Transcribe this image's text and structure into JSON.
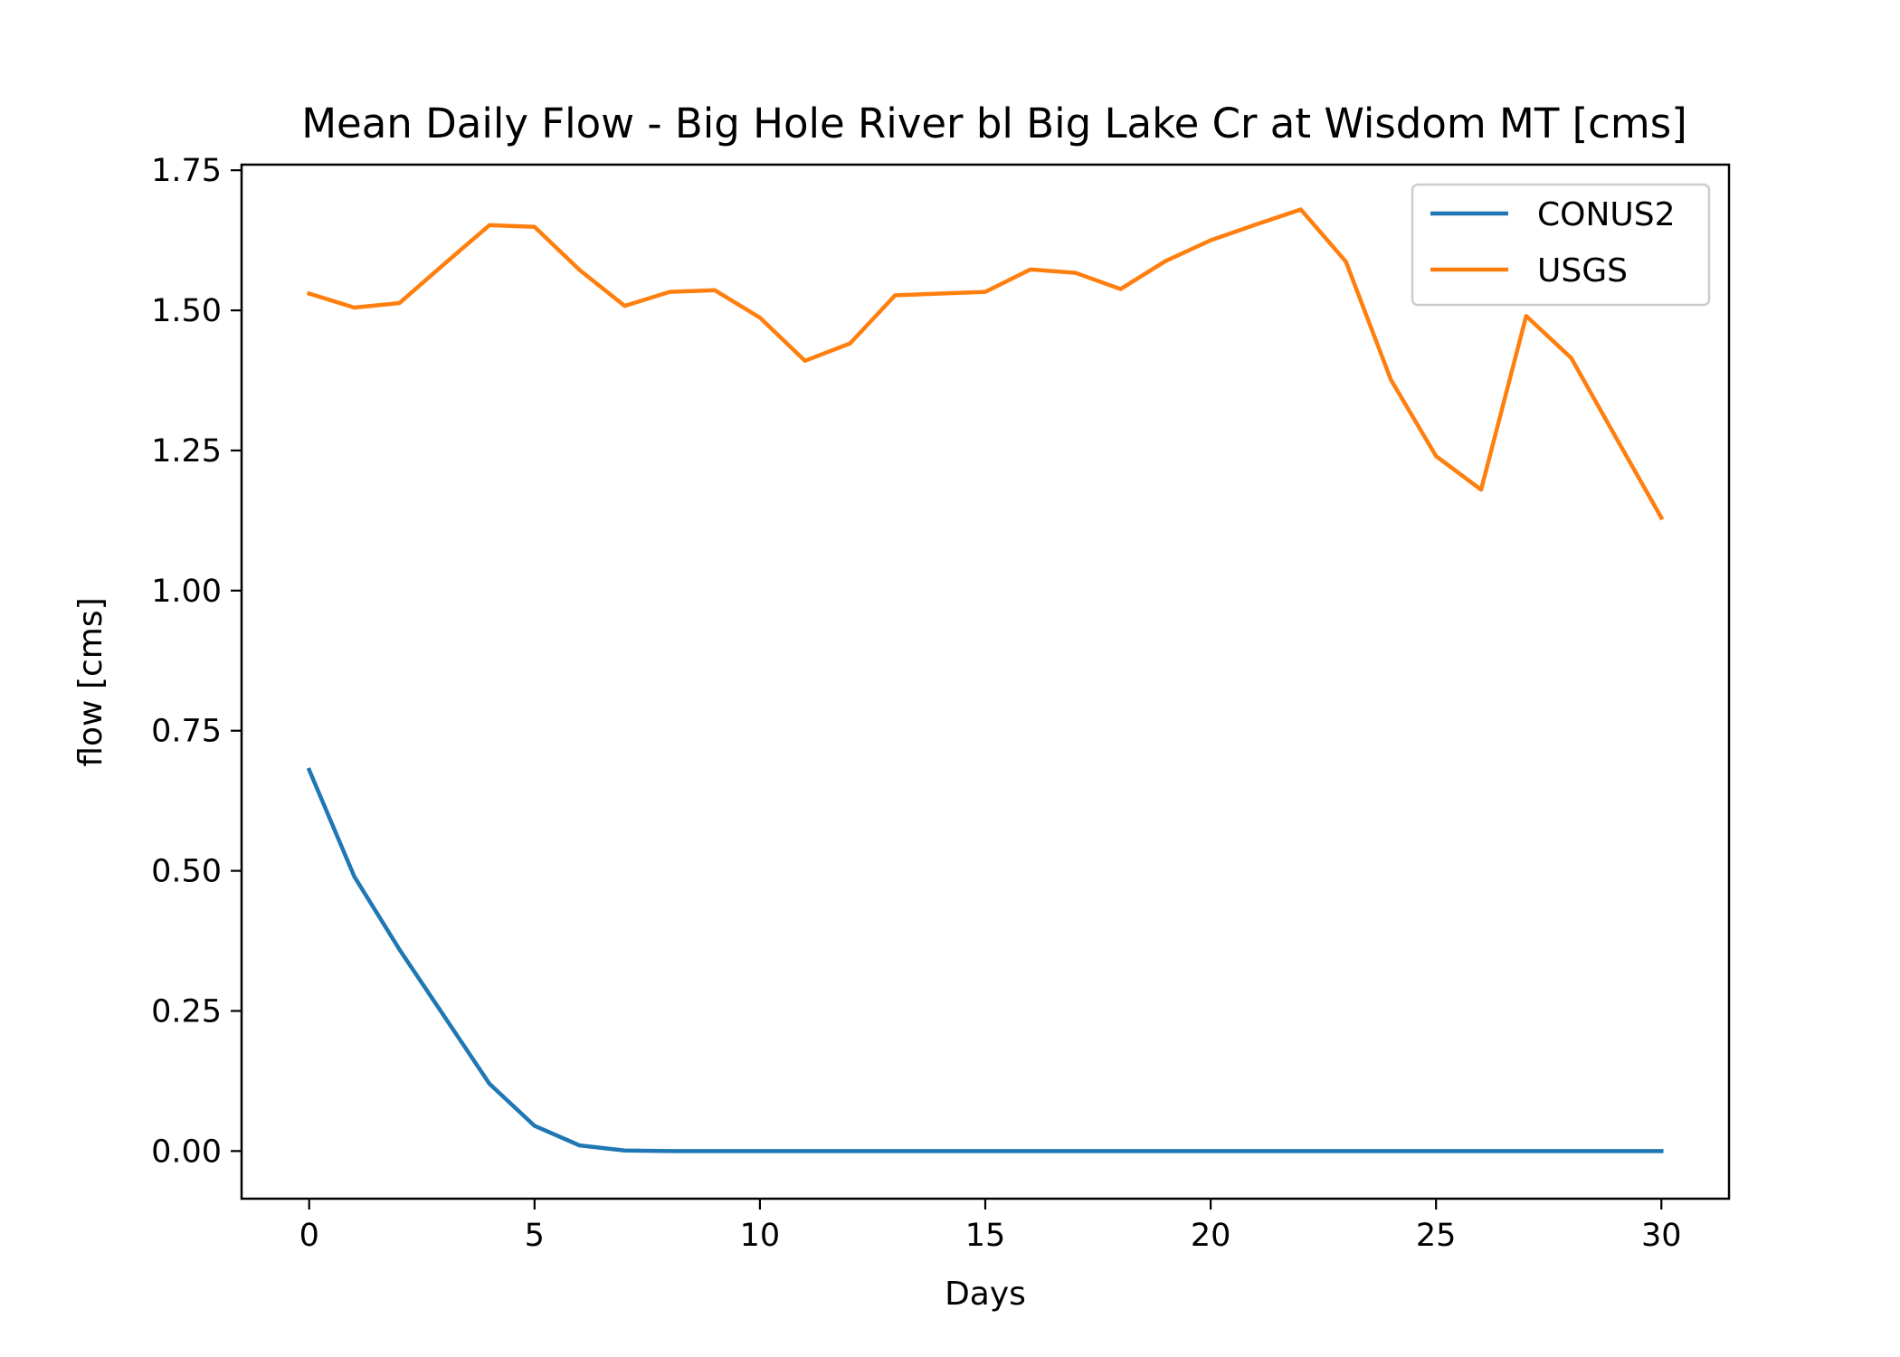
{
  "chart_data": {
    "type": "line",
    "title": "Mean Daily Flow - Big Hole River bl Big Lake Cr at Wisdom MT [cms]",
    "xlabel": "Days",
    "ylabel": "flow [cms]",
    "xlim": [
      -1.5,
      31.5
    ],
    "ylim": [
      -0.085,
      1.76
    ],
    "xticks": [
      0,
      5,
      10,
      15,
      20,
      25,
      30
    ],
    "xtick_labels": [
      "0",
      "5",
      "10",
      "15",
      "20",
      "25",
      "30"
    ],
    "yticks": [
      0.0,
      0.25,
      0.5,
      0.75,
      1.0,
      1.25,
      1.5,
      1.75
    ],
    "ytick_labels": [
      "0.00",
      "0.25",
      "0.50",
      "0.75",
      "1.00",
      "1.25",
      "1.50",
      "1.75"
    ],
    "grid": false,
    "legend_position": "top-right",
    "x": [
      0,
      1,
      2,
      3,
      4,
      5,
      6,
      7,
      8,
      9,
      10,
      11,
      12,
      13,
      14,
      15,
      16,
      17,
      18,
      19,
      20,
      21,
      22,
      23,
      24,
      25,
      26,
      27,
      28,
      29,
      30
    ],
    "series": [
      {
        "name": "CONUS2",
        "color": "#1f77b4",
        "values": [
          0.68,
          0.49,
          0.36,
          0.24,
          0.12,
          0.045,
          0.01,
          0.001,
          0.0,
          0.0,
          0.0,
          0.0,
          0.0,
          0.0,
          0.0,
          0.0,
          0.0,
          0.0,
          0.0,
          0.0,
          0.0,
          0.0,
          0.0,
          0.0,
          0.0,
          0.0,
          0.0,
          0.0,
          0.0,
          0.0,
          0.0
        ]
      },
      {
        "name": "USGS",
        "color": "#ff7f0e",
        "values": [
          1.53,
          1.505,
          1.513,
          1.583,
          1.652,
          1.649,
          1.572,
          1.508,
          1.533,
          1.536,
          1.487,
          1.41,
          1.441,
          1.527,
          1.53,
          1.533,
          1.573,
          1.567,
          1.538,
          1.588,
          1.625,
          1.653,
          1.68,
          1.587,
          1.376,
          1.24,
          1.18,
          1.49,
          1.415,
          1.272,
          1.13
        ]
      }
    ]
  }
}
